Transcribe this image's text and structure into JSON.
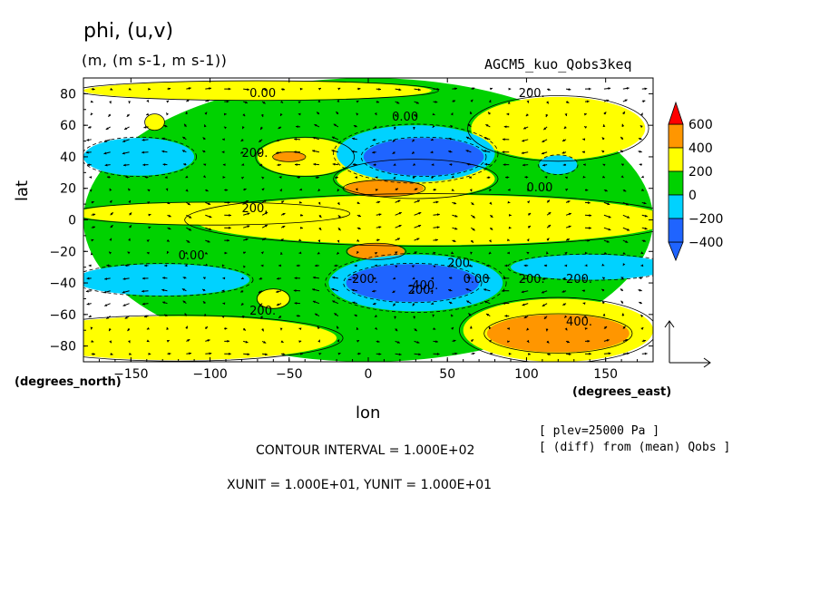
{
  "header": {
    "title": "phi, (u,v)",
    "units": "(m, (m s-1, m s-1))",
    "run_name": "AGCM5_kuo_Qobs3keq"
  },
  "axes": {
    "ylabel": "lat",
    "ylabel_units": "(degrees_north)",
    "xlabel": "lon",
    "xlabel_units": "(degrees_east)"
  },
  "info": {
    "plev": "[ plev=25000 Pa ]",
    "diff": "[ (diff) from (mean) Qobs ]",
    "contour_interval": "CONTOUR INTERVAL = 1.000E+02",
    "unit_vector": "XUNIT = 1.000E+01, YUNIT = 1.000E+01"
  },
  "chart_data": {
    "type": "heatmap",
    "variable": "phi",
    "x_range": [
      -180,
      180
    ],
    "y_range": [
      -90,
      90
    ],
    "x_ticks": [
      -150,
      -100,
      -50,
      0,
      50,
      100,
      150
    ],
    "y_ticks": [
      -80,
      -60,
      -40,
      -20,
      0,
      20,
      40,
      60,
      80
    ],
    "colorbar": {
      "levels": [
        -400,
        -200,
        0,
        200,
        400,
        600
      ],
      "colors": [
        "#1f64ff",
        "#00d2ff",
        "#00d200",
        "#ffff00",
        "#ff9600",
        "#ff0000"
      ]
    },
    "contour_labels": [
      "0.00",
      "0.00",
      "200.",
      "200.",
      "200.",
      "0.00",
      "200.",
      "200.",
      "-200.",
      "0.00",
      "200.",
      "0.00",
      "200.",
      "-400.",
      "200.",
      "400."
    ],
    "regions": [
      {
        "value": 0,
        "label": "background",
        "lon": 0,
        "lat": 0,
        "rx": 180,
        "ry": 90
      },
      {
        "value": 200,
        "lon": -120,
        "lat": -75,
        "rx": 100,
        "ry": 14
      },
      {
        "value": 200,
        "lon": 120,
        "lat": -70,
        "rx": 60,
        "ry": 20
      },
      {
        "value": 400,
        "lon": 120,
        "lat": -72,
        "rx": 45,
        "ry": 12
      },
      {
        "value": 200,
        "lon": -100,
        "lat": 4,
        "rx": 85,
        "ry": 7
      },
      {
        "value": 200,
        "lon": 40,
        "lat": 0,
        "rx": 150,
        "ry": 16
      },
      {
        "value": 200,
        "lon": 30,
        "lat": 26,
        "rx": 50,
        "ry": 12
      },
      {
        "value": 400,
        "lon": 10,
        "lat": 20,
        "rx": 25,
        "ry": 5
      },
      {
        "value": 400,
        "lon": 5,
        "lat": -20,
        "rx": 18,
        "ry": 5
      },
      {
        "value": 200,
        "lon": -40,
        "lat": 40,
        "rx": 30,
        "ry": 12
      },
      {
        "value": 400,
        "lon": -50,
        "lat": 40,
        "rx": 10,
        "ry": 3
      },
      {
        "value": 200,
        "lon": 120,
        "lat": 58,
        "rx": 55,
        "ry": 20
      },
      {
        "value": 200,
        "lon": -70,
        "lat": 82,
        "rx": 110,
        "ry": 6
      },
      {
        "value": 200,
        "lon": -60,
        "lat": -50,
        "rx": 10,
        "ry": 6
      },
      {
        "value": 200,
        "lon": -135,
        "lat": 62,
        "rx": 6,
        "ry": 5
      },
      {
        "value": -200,
        "lon": 30,
        "lat": 42,
        "rx": 50,
        "ry": 18
      },
      {
        "value": -400,
        "lon": 35,
        "lat": 40,
        "rx": 38,
        "ry": 12
      },
      {
        "value": -200,
        "lon": 30,
        "lat": -40,
        "rx": 55,
        "ry": 18
      },
      {
        "value": -400,
        "lon": 28,
        "lat": -40,
        "rx": 42,
        "ry": 12
      },
      {
        "value": -200,
        "lon": -145,
        "lat": 40,
        "rx": 35,
        "ry": 12
      },
      {
        "value": -200,
        "lon": -130,
        "lat": -38,
        "rx": 55,
        "ry": 10
      },
      {
        "value": -200,
        "lon": 140,
        "lat": -30,
        "rx": 50,
        "ry": 8
      },
      {
        "value": -200,
        "lon": 120,
        "lat": 35,
        "rx": 12,
        "ry": 6
      }
    ]
  }
}
